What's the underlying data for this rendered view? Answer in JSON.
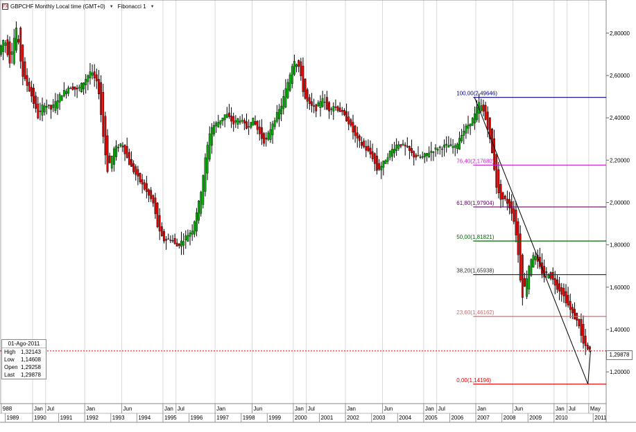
{
  "toolbar": {
    "symbol_title": "GBPCHF Monthly Local time (GMT+0)",
    "indicator": "Fibonacci 1",
    "icon": "chart-icon"
  },
  "info_box": {
    "date": "01-Ago-2011",
    "rows": [
      {
        "label": "High",
        "value": "1,32143"
      },
      {
        "label": "Low",
        "value": "1,14608"
      },
      {
        "label": "Open",
        "value": "1,29258"
      },
      {
        "label": "Last",
        "value": "1,29878"
      }
    ]
  },
  "current_price": "1,29878",
  "chart_data": {
    "type": "candlestick",
    "ylim": [
      1.05,
      2.95
    ],
    "y_ticks": [
      "2,80000",
      "2,60000",
      "2,40000",
      "2,20000",
      "2,00000",
      "1,80000",
      "1,60000",
      "1,40000",
      "1,20000"
    ],
    "y_tick_values": [
      2.8,
      2.6,
      2.4,
      2.2,
      2.0,
      1.8,
      1.6,
      1.4,
      1.2
    ],
    "x_start": 1988.75,
    "x_end": 2012.0,
    "month_labels": [
      {
        "t": 1988.8,
        "label": "988"
      },
      {
        "t": 1990.0,
        "label": "Jan"
      },
      {
        "t": 1990.5,
        "label": "Jul"
      },
      {
        "t": 1992.0,
        "label": "Jan"
      },
      {
        "t": 1993.42,
        "label": "Jun"
      },
      {
        "t": 1995.0,
        "label": "Jan"
      },
      {
        "t": 1995.5,
        "label": "Jul"
      },
      {
        "t": 1997.0,
        "label": "Jan"
      },
      {
        "t": 1998.42,
        "label": "Jun"
      },
      {
        "t": 2000.0,
        "label": "Jan"
      },
      {
        "t": 2000.5,
        "label": "Jul"
      },
      {
        "t": 2002.0,
        "label": "Jan"
      },
      {
        "t": 2003.42,
        "label": "Jun"
      },
      {
        "t": 2005.0,
        "label": "Jan"
      },
      {
        "t": 2005.5,
        "label": "Jul"
      },
      {
        "t": 2007.0,
        "label": "Jan"
      },
      {
        "t": 2008.42,
        "label": "Jun"
      },
      {
        "t": 2010.0,
        "label": "Jan"
      },
      {
        "t": 2010.5,
        "label": "Jul"
      },
      {
        "t": 2011.33,
        "label": "May"
      }
    ],
    "year_labels": [
      {
        "t": 1988.95,
        "label": "1989"
      },
      {
        "t": 1990.0,
        "label": "1990"
      },
      {
        "t": 1991.0,
        "label": "1991"
      },
      {
        "t": 1992.0,
        "label": "1992"
      },
      {
        "t": 1993.0,
        "label": "1993"
      },
      {
        "t": 1994.0,
        "label": "1994"
      },
      {
        "t": 1995.0,
        "label": "1995"
      },
      {
        "t": 1996.0,
        "label": "1996"
      },
      {
        "t": 1997.0,
        "label": "1997"
      },
      {
        "t": 1998.0,
        "label": "1998"
      },
      {
        "t": 1999.0,
        "label": "1999"
      },
      {
        "t": 2000.0,
        "label": "2000"
      },
      {
        "t": 2001.0,
        "label": "2001"
      },
      {
        "t": 2002.0,
        "label": "2002"
      },
      {
        "t": 2003.0,
        "label": "2003"
      },
      {
        "t": 2004.0,
        "label": "2004"
      },
      {
        "t": 2005.0,
        "label": "2005"
      },
      {
        "t": 2006.0,
        "label": "2006"
      },
      {
        "t": 2007.0,
        "label": "2007"
      },
      {
        "t": 2008.0,
        "label": "2008"
      },
      {
        "t": 2009.0,
        "label": "2009"
      },
      {
        "t": 2010.0,
        "label": "2010"
      },
      {
        "t": 2011.5,
        "label": "2011"
      }
    ],
    "price_path": [
      [
        1988.75,
        2.7
      ],
      [
        1989.0,
        2.78
      ],
      [
        1989.2,
        2.66
      ],
      [
        1989.45,
        2.83
      ],
      [
        1989.7,
        2.6
      ],
      [
        1990.0,
        2.52
      ],
      [
        1990.3,
        2.4
      ],
      [
        1990.5,
        2.47
      ],
      [
        1990.8,
        2.44
      ],
      [
        1991.1,
        2.5
      ],
      [
        1991.5,
        2.55
      ],
      [
        1991.8,
        2.53
      ],
      [
        1992.1,
        2.58
      ],
      [
        1992.3,
        2.62
      ],
      [
        1992.6,
        2.55
      ],
      [
        1992.8,
        2.3
      ],
      [
        1992.95,
        2.15
      ],
      [
        1993.2,
        2.25
      ],
      [
        1993.5,
        2.28
      ],
      [
        1993.8,
        2.18
      ],
      [
        1994.1,
        2.12
      ],
      [
        1994.4,
        2.06
      ],
      [
        1994.7,
        2.0
      ],
      [
        1994.9,
        1.87
      ],
      [
        1995.1,
        1.82
      ],
      [
        1995.4,
        1.83
      ],
      [
        1995.6,
        1.79
      ],
      [
        1995.9,
        1.83
      ],
      [
        1996.2,
        1.87
      ],
      [
        1996.5,
        2.02
      ],
      [
        1996.7,
        2.2
      ],
      [
        1996.9,
        2.35
      ],
      [
        1997.2,
        2.38
      ],
      [
        1997.5,
        2.42
      ],
      [
        1997.8,
        2.37
      ],
      [
        1998.0,
        2.4
      ],
      [
        1998.3,
        2.35
      ],
      [
        1998.5,
        2.4
      ],
      [
        1998.8,
        2.32
      ],
      [
        1999.0,
        2.28
      ],
      [
        1999.3,
        2.38
      ],
      [
        1999.6,
        2.45
      ],
      [
        1999.9,
        2.58
      ],
      [
        2000.1,
        2.68
      ],
      [
        2000.3,
        2.64
      ],
      [
        2000.5,
        2.5
      ],
      [
        2000.7,
        2.46
      ],
      [
        2000.95,
        2.44
      ],
      [
        2001.2,
        2.5
      ],
      [
        2001.4,
        2.43
      ],
      [
        2001.6,
        2.46
      ],
      [
        2001.9,
        2.43
      ],
      [
        2002.2,
        2.38
      ],
      [
        2002.5,
        2.3
      ],
      [
        2002.8,
        2.26
      ],
      [
        2003.1,
        2.22
      ],
      [
        2003.3,
        2.15
      ],
      [
        2003.5,
        2.18
      ],
      [
        2003.8,
        2.24
      ],
      [
        2004.1,
        2.28
      ],
      [
        2004.4,
        2.26
      ],
      [
        2004.7,
        2.22
      ],
      [
        2005.0,
        2.21
      ],
      [
        2005.3,
        2.24
      ],
      [
        2005.7,
        2.26
      ],
      [
        2006.0,
        2.27
      ],
      [
        2006.3,
        2.26
      ],
      [
        2006.5,
        2.32
      ],
      [
        2006.8,
        2.37
      ],
      [
        2007.0,
        2.4
      ],
      [
        2007.2,
        2.47
      ],
      [
        2007.35,
        2.44
      ],
      [
        2007.55,
        2.35
      ],
      [
        2007.75,
        2.2
      ],
      [
        2007.9,
        2.05
      ],
      [
        2008.05,
        2.02
      ],
      [
        2008.25,
        2.01
      ],
      [
        2008.45,
        1.96
      ],
      [
        2008.6,
        1.88
      ],
      [
        2008.75,
        1.7
      ],
      [
        2008.85,
        1.55
      ],
      [
        2009.0,
        1.62
      ],
      [
        2009.15,
        1.72
      ],
      [
        2009.3,
        1.76
      ],
      [
        2009.5,
        1.7
      ],
      [
        2009.7,
        1.65
      ],
      [
        2009.85,
        1.67
      ],
      [
        2010.0,
        1.64
      ],
      [
        2010.2,
        1.6
      ],
      [
        2010.4,
        1.57
      ],
      [
        2010.6,
        1.52
      ],
      [
        2010.75,
        1.48
      ],
      [
        2010.9,
        1.45
      ],
      [
        2011.05,
        1.42
      ],
      [
        2011.15,
        1.35
      ],
      [
        2011.25,
        1.32
      ],
      [
        2011.4,
        1.3
      ]
    ],
    "trend_line": {
      "from": [
        2006.95,
        2.4965
      ],
      "to": [
        2011.3,
        1.1419
      ],
      "to_end": [
        2011.4,
        1.3
      ]
    },
    "fib_start": 2006.9,
    "fib_levels": [
      {
        "label": "100,00(2,49646)",
        "value": 2.4965,
        "color": "#00007f"
      },
      {
        "label": "76,40(2,17680)",
        "value": 2.1768,
        "color": "#cc22cc"
      },
      {
        "label": "61,80(1,97904)",
        "value": 1.979,
        "color": "#660066"
      },
      {
        "label": "50,00(1,81821)",
        "value": 1.8182,
        "color": "#006600"
      },
      {
        "label": "38,20(1,65938)",
        "value": 1.6594,
        "color": "#333333"
      },
      {
        "label": "23,60(1,46162)",
        "value": 1.4616,
        "color": "#c87070"
      },
      {
        "label": "0,00(1,14196)",
        "value": 1.142,
        "color": "#e00000"
      }
    ],
    "current_line": {
      "value": 1.2988,
      "color": "#cc0000"
    }
  }
}
